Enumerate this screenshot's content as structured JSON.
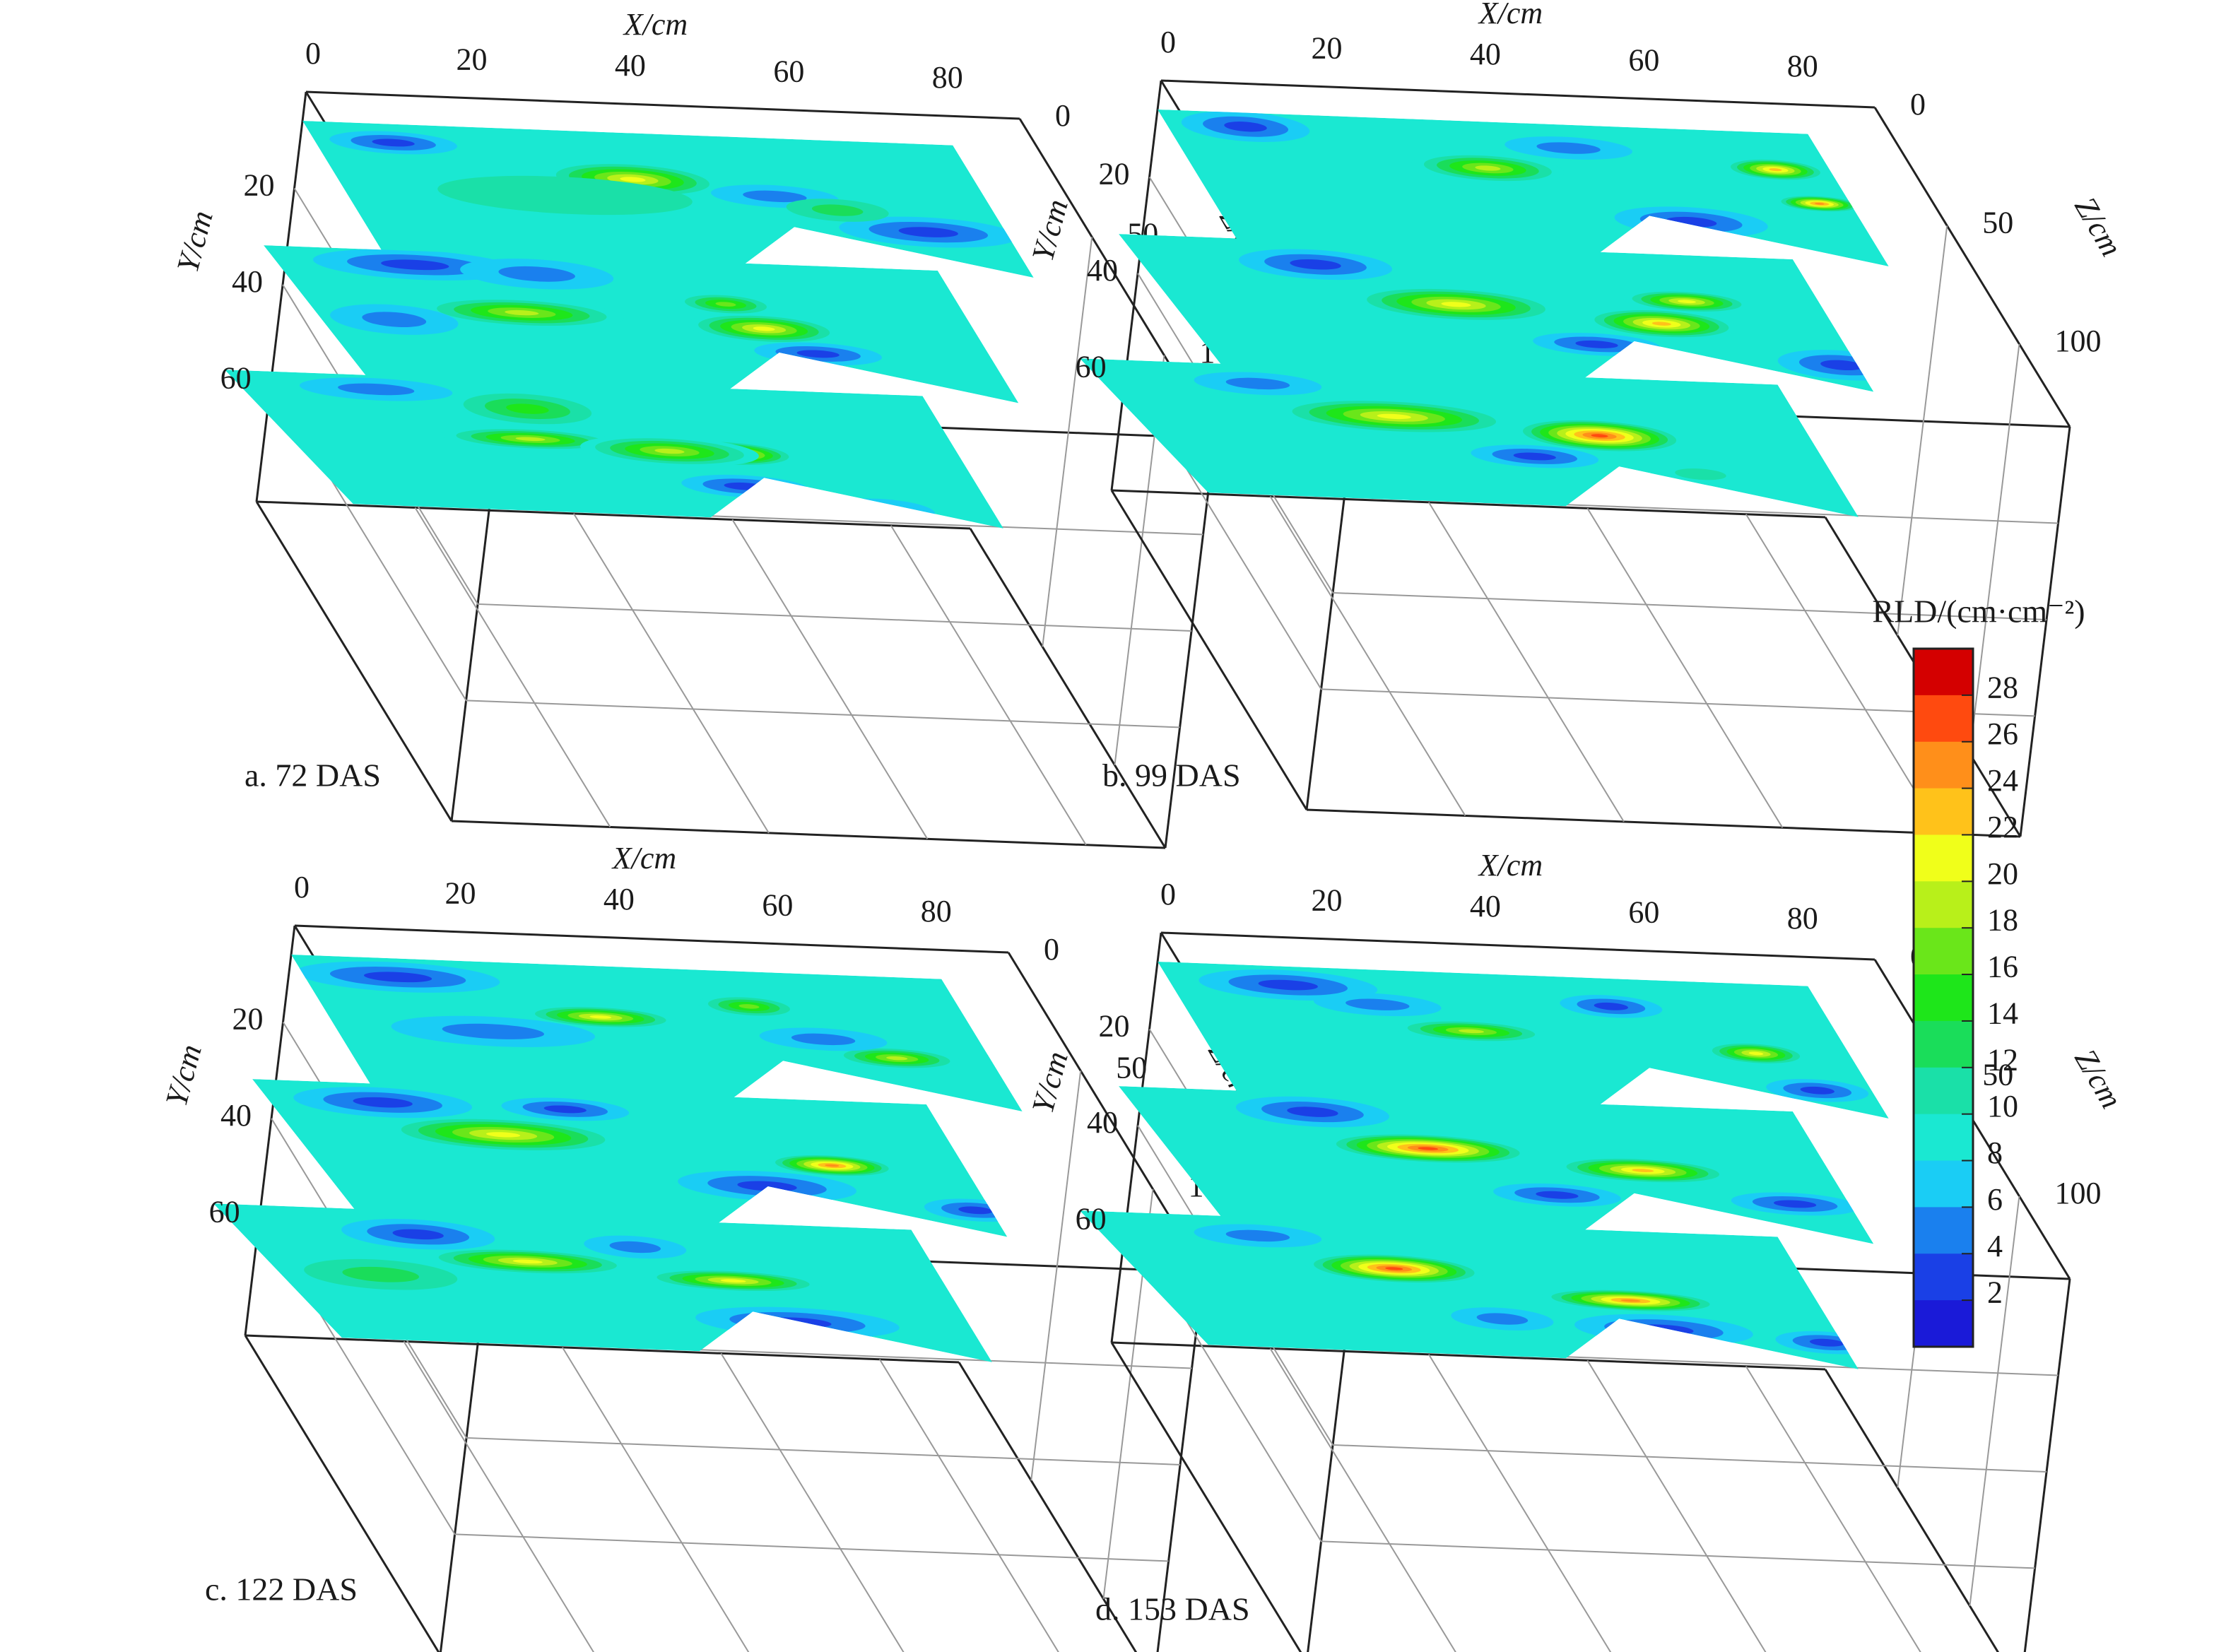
{
  "chart_data": {
    "type": "heatmap",
    "units": {
      "x_axis_label": "X/cm",
      "y_axis_label": "Y/cm",
      "z_axis_label": "Z/cm"
    },
    "x_ticks": [
      "0",
      "20",
      "40",
      "60",
      "80"
    ],
    "y_ticks": [
      "20",
      "40",
      "60"
    ],
    "z_ticks": [
      "0",
      "50",
      "100"
    ],
    "colorbar": {
      "title": "RLD/(cm·cm⁻²)",
      "ticks": [
        "28",
        "26",
        "24",
        "22",
        "20",
        "18",
        "16",
        "14",
        "12",
        "10",
        "8",
        "6",
        "4",
        "2"
      ],
      "colors": [
        "#d40000",
        "#ff4a0f",
        "#ff8f1a",
        "#ffc21a",
        "#f0ff1a",
        "#b8f01a",
        "#6ae61a",
        "#1ee61a",
        "#1add5a",
        "#1ae0a8",
        "#1ae8d2",
        "#1acdf5",
        "#1a80ee",
        "#1a40e6",
        "#1a1ad8"
      ]
    },
    "panels": [
      {
        "label": "a. 72 DAS",
        "background_rld": 9,
        "slices": [
          {
            "blobs": [
              [
                10,
                8,
                5,
                3,
                3
              ],
              [
                38,
                20,
                6,
                4,
                21
              ],
              [
                55,
                25,
                5,
                3,
                6
              ],
              [
                72,
                38,
                7,
                4,
                3
              ],
              [
                28,
                28,
                10,
                5,
                11
              ],
              [
                62,
                30,
                4,
                3,
                13
              ]
            ]
          },
          {
            "blobs": [
              [
                15,
                6,
                8,
                4,
                3
              ],
              [
                30,
                8,
                6,
                4,
                5
              ],
              [
                25,
                25,
                8,
                4,
                20
              ],
              [
                55,
                28,
                6,
                4,
                22
              ],
              [
                52,
                18,
                4,
                3,
                18
              ],
              [
                60,
                38,
                5,
                3,
                4
              ],
              [
                8,
                30,
                5,
                4,
                6
              ]
            ]
          },
          {
            "blobs": [
              [
                12,
                6,
                6,
                3,
                6
              ],
              [
                28,
                25,
                7,
                3,
                20
              ],
              [
                52,
                28,
                5,
                3,
                25
              ],
              [
                45,
                28,
                7,
                4,
                20
              ],
              [
                52,
                42,
                5,
                3,
                3
              ],
              [
                68,
                50,
                4,
                3,
                6
              ],
              [
                30,
                12,
                5,
                4,
                15
              ]
            ]
          }
        ]
      },
      {
        "label": "b. 99 DAS",
        "background_rld": 9,
        "slices": [
          {
            "blobs": [
              [
                10,
                6,
                5,
                4,
                3
              ],
              [
                38,
                20,
                6,
                4,
                20
              ],
              [
                75,
                16,
                4,
                3,
                24
              ],
              [
                78,
                30,
                3,
                2,
                25
              ],
              [
                60,
                40,
                6,
                4,
                4
              ],
              [
                50,
                10,
                5,
                3,
                6
              ]
            ]
          },
          {
            "blobs": [
              [
                20,
                10,
                6,
                4,
                4
              ],
              [
                35,
                25,
                7,
                4,
                21
              ],
              [
                65,
                20,
                5,
                3,
                22
              ],
              [
                60,
                30,
                6,
                4,
                24
              ],
              [
                50,
                40,
                5,
                3,
                3
              ],
              [
                80,
                45,
                5,
                4,
                4
              ]
            ]
          },
          {
            "blobs": [
              [
                15,
                8,
                5,
                3,
                5
              ],
              [
                30,
                20,
                8,
                4,
                21
              ],
              [
                55,
                25,
                6,
                4,
                27
              ],
              [
                45,
                35,
                5,
                3,
                4
              ],
              [
                65,
                40,
                4,
                3,
                12
              ]
            ]
          }
        ]
      },
      {
        "label": "c. 122 DAS",
        "background_rld": 9,
        "slices": [
          {
            "blobs": [
              [
                12,
                8,
                8,
                4,
                3
              ],
              [
                35,
                22,
                6,
                3,
                22
              ],
              [
                55,
                15,
                4,
                3,
                18
              ],
              [
                70,
                35,
                5,
                3,
                20
              ],
              [
                20,
                30,
                8,
                4,
                5
              ],
              [
                62,
                28,
                5,
                3,
                6
              ]
            ]
          },
          {
            "blobs": [
              [
                12,
                8,
                7,
                4,
                4
              ],
              [
                25,
                20,
                8,
                4,
                21
              ],
              [
                65,
                28,
                5,
                3,
                26
              ],
              [
                55,
                38,
                7,
                4,
                4
              ],
              [
                80,
                45,
                4,
                3,
                3
              ],
              [
                35,
                8,
                5,
                3,
                4
              ]
            ]
          },
          {
            "blobs": [
              [
                18,
                10,
                6,
                4,
                4
              ],
              [
                30,
                20,
                7,
                3,
                21
              ],
              [
                55,
                25,
                7,
                3,
                22
              ],
              [
                60,
                42,
                8,
                4,
                3
              ],
              [
                10,
                28,
                6,
                4,
                13
              ],
              [
                45,
                12,
                4,
                3,
                6
              ]
            ]
          }
        ]
      },
      {
        "label": "d. 153 DAS",
        "background_rld": 9,
        "slices": [
          {
            "blobs": [
              [
                15,
                8,
                7,
                4,
                4
              ],
              [
                35,
                25,
                6,
                3,
                20
              ],
              [
                70,
                30,
                4,
                3,
                22
              ],
              [
                55,
                12,
                4,
                3,
                4
              ],
              [
                75,
                45,
                4,
                3,
                4
              ],
              [
                25,
                15,
                5,
                3,
                6
              ]
            ]
          },
          {
            "blobs": [
              [
                20,
                8,
                6,
                4,
                4
              ],
              [
                32,
                22,
                8,
                4,
                28
              ],
              [
                58,
                28,
                6,
                3,
                23
              ],
              [
                75,
                40,
                5,
                3,
                4
              ],
              [
                45,
                40,
                5,
                3,
                4
              ]
            ]
          },
          {
            "blobs": [
              [
                15,
                8,
                5,
                3,
                5
              ],
              [
                30,
                20,
                7,
                4,
                28
              ],
              [
                58,
                30,
                7,
                3,
                26
              ],
              [
                60,
                42,
                7,
                4,
                4
              ],
              [
                80,
                45,
                4,
                3,
                3
              ],
              [
                40,
                40,
                4,
                3,
                5
              ]
            ]
          }
        ]
      }
    ]
  }
}
